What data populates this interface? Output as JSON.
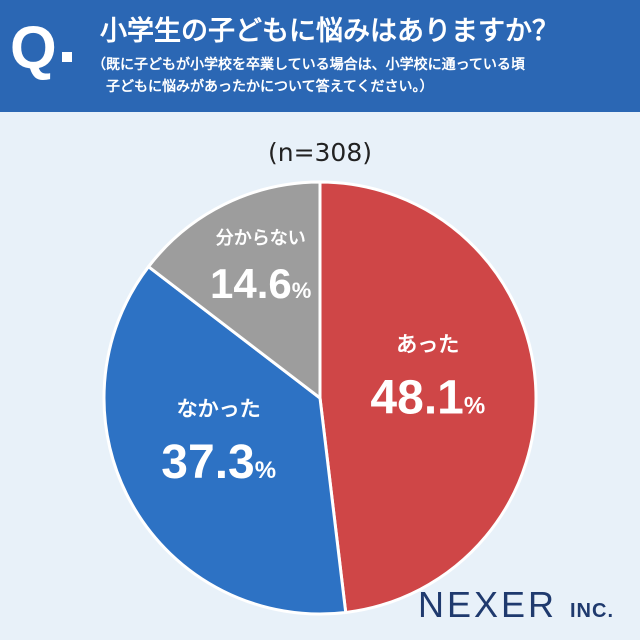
{
  "header": {
    "q_mark": "Q",
    "question": "小学生の子どもに悩みはありますか？",
    "sub_line1": "（既に子どもが小学校を卒業している場合は、小学校に通っている頃",
    "sub_line2": "子どもに悩みがあったかについて答えてください。）"
  },
  "sample": "(n=308)",
  "brand": {
    "name": "NEXER",
    "suffix": "INC."
  },
  "colors": {
    "header_bg": "#2b67b4",
    "page_bg": "#e8f1f9",
    "answer_yes": "#cf4647",
    "answer_no": "#2d72c4",
    "answer_unknown": "#9d9d9d"
  },
  "chart_data": {
    "type": "pie",
    "title": "小学生の子どもに悩みはありますか？",
    "slices": [
      {
        "label": "あった",
        "value": 48.1,
        "display": "48.1",
        "unit": "%",
        "color": "#cf4647"
      },
      {
        "label": "なかった",
        "value": 37.3,
        "display": "37.3",
        "unit": "%",
        "color": "#2d72c4"
      },
      {
        "label": "分からない",
        "value": 14.6,
        "display": "14.6",
        "unit": "%",
        "color": "#9d9d9d"
      }
    ]
  }
}
